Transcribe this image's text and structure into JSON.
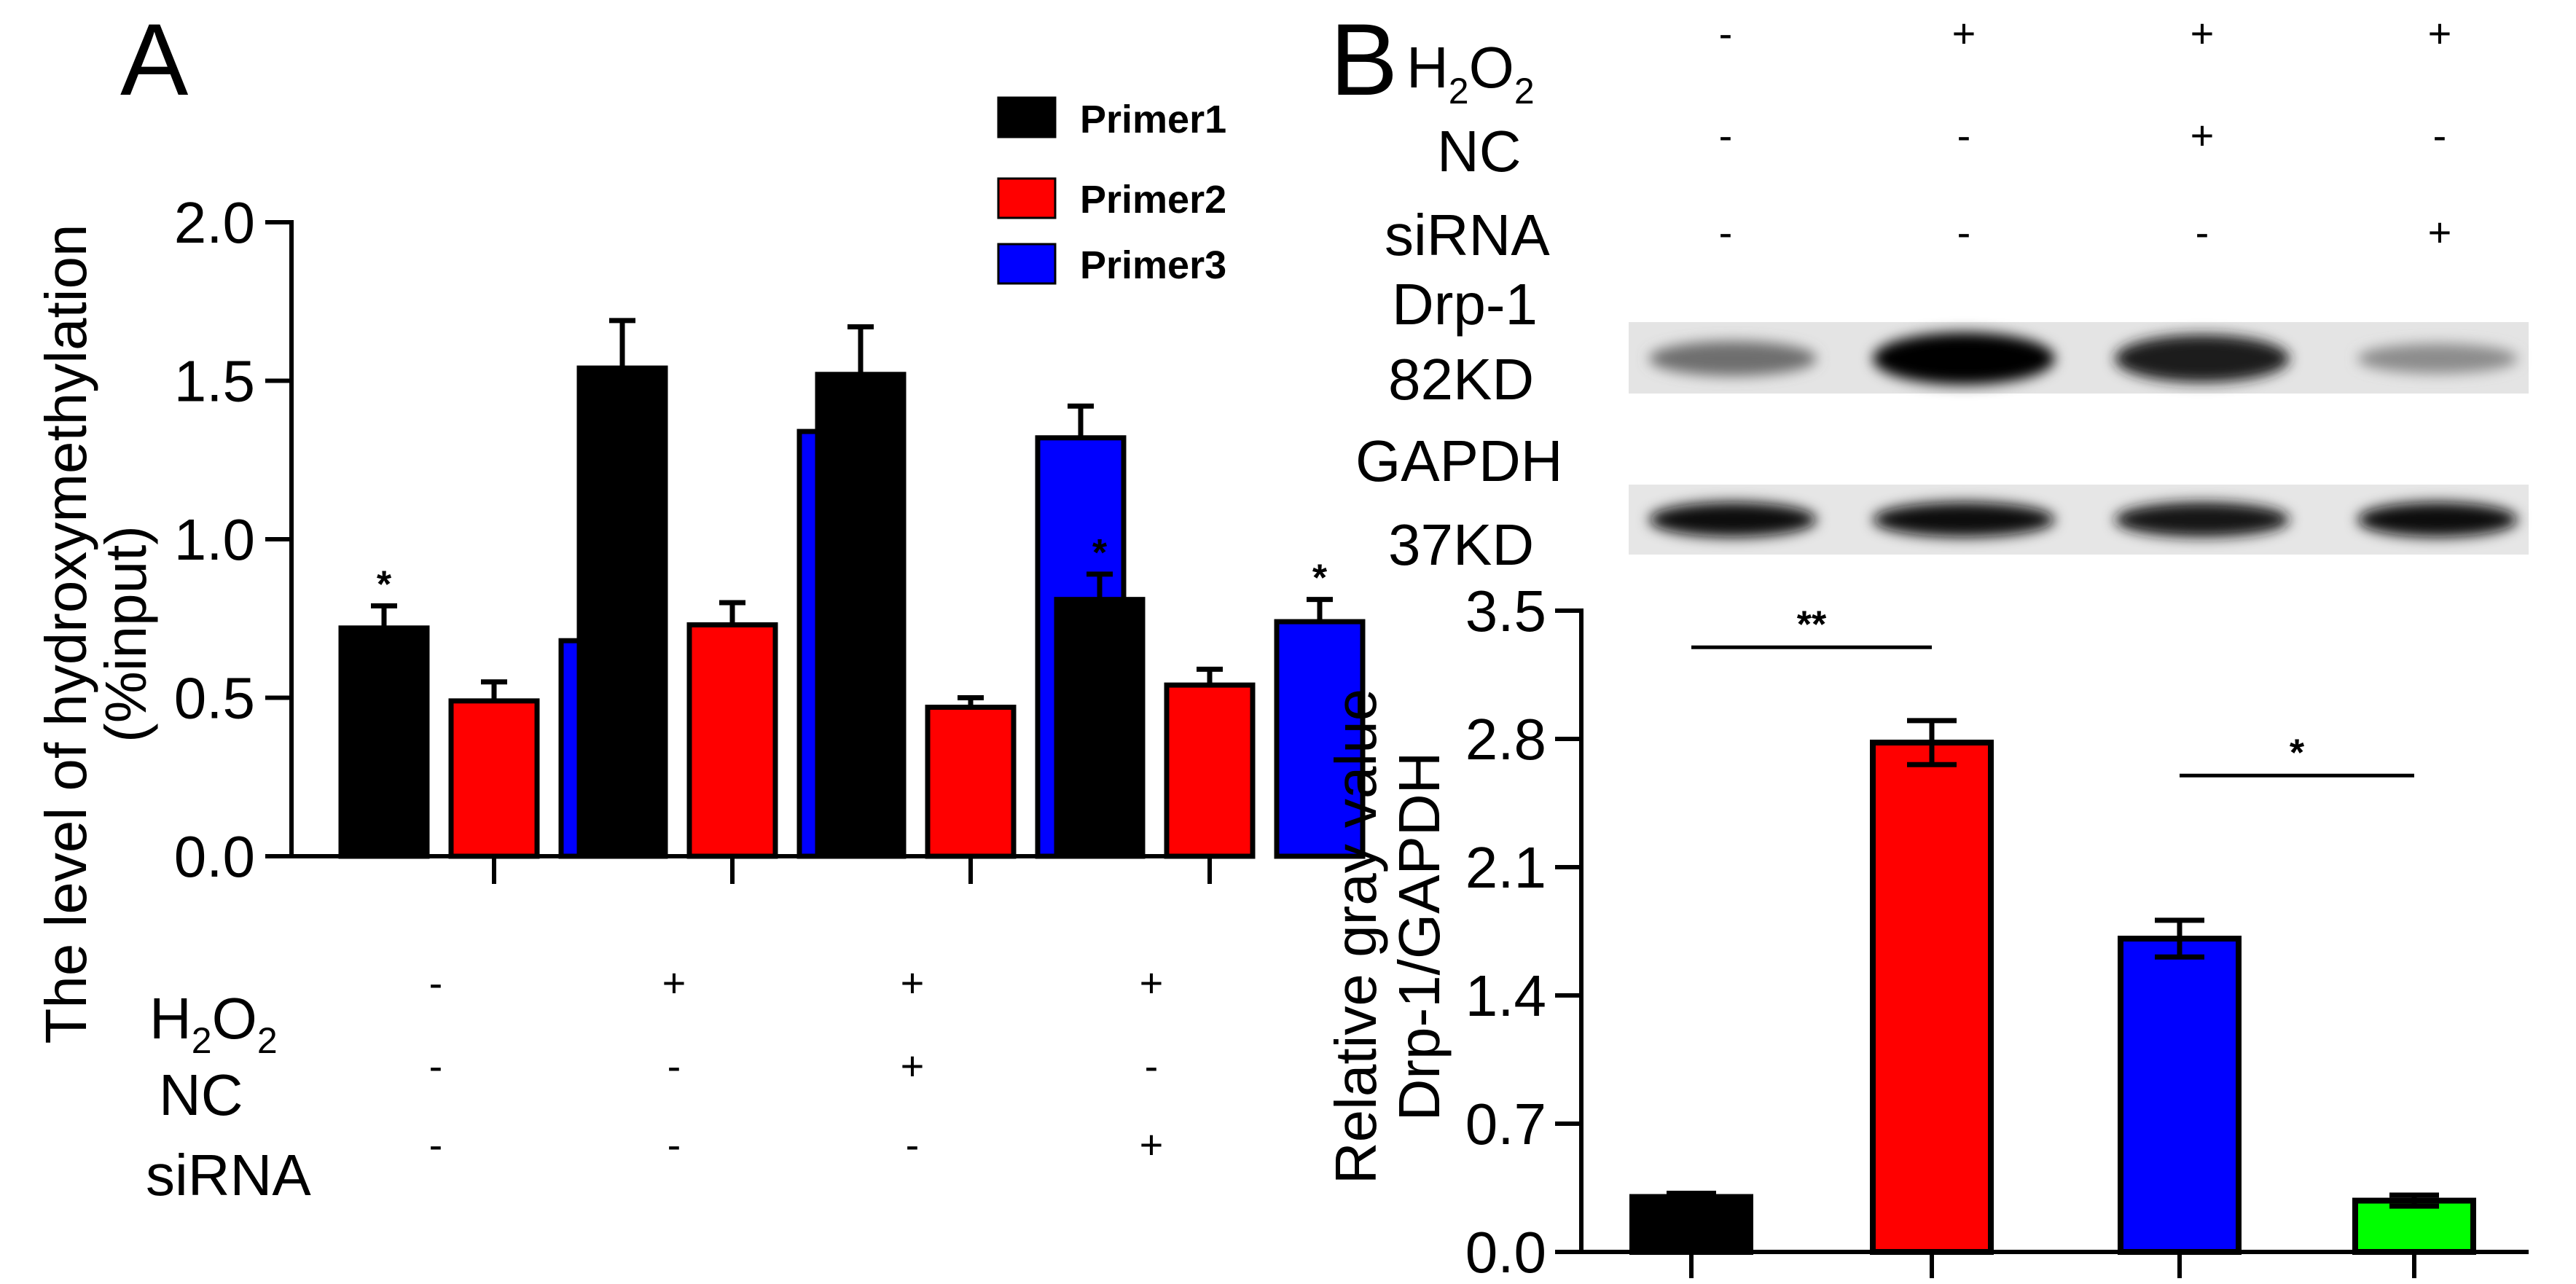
{
  "panel_a": {
    "label": "A",
    "treatments": [
      {
        "name": "H",
        "sub": "2",
        "name2": "O",
        "sub2": "2",
        "values": [
          "-",
          "+",
          "+",
          "+"
        ]
      },
      {
        "name": "NC",
        "values": [
          "-",
          "-",
          "+",
          "-"
        ]
      },
      {
        "name": "siRNA",
        "values": [
          "-",
          "-",
          "-",
          "+"
        ]
      }
    ]
  },
  "panel_b": {
    "label": "B",
    "treatments": [
      {
        "name": "H",
        "sub": "2",
        "name2": "O",
        "sub2": "2",
        "values": [
          "-",
          "+",
          "+",
          "+"
        ]
      },
      {
        "name": "NC",
        "values": [
          "-",
          "-",
          "+",
          "-"
        ]
      },
      {
        "name": "siRNA",
        "values": [
          "-",
          "-",
          "-",
          "+"
        ]
      }
    ],
    "blot_labels": {
      "drp1_name": "Drp-1",
      "drp1_kd": "82KD",
      "gapdh_name": "GAPDH",
      "gapdh_kd": "37KD"
    },
    "blot_intensity": {
      "drp1": [
        0.45,
        1.0,
        0.85,
        0.3
      ],
      "gapdh": [
        0.95,
        0.95,
        0.9,
        0.95
      ]
    }
  },
  "chart_data": [
    {
      "type": "bar",
      "id": "A",
      "ylabel_line1": "The level of hydroxymethylation",
      "ylabel_line2": "(%input)",
      "ylim": [
        0,
        2.0
      ],
      "yticks": [
        "0.0",
        "0.5",
        "1.0",
        "1.5",
        "2.0"
      ],
      "groups": 4,
      "series": [
        {
          "name": "Primer1",
          "color": "#000000",
          "values": [
            0.72,
            1.54,
            1.52,
            0.81
          ],
          "errors": [
            0.07,
            0.15,
            0.15,
            0.08
          ],
          "sig": [
            "*",
            "",
            "",
            "*"
          ]
        },
        {
          "name": "Primer2",
          "color": "#ff0000",
          "values": [
            0.49,
            0.73,
            0.47,
            0.54
          ],
          "errors": [
            0.06,
            0.07,
            0.03,
            0.05
          ],
          "sig": [
            "",
            "",
            "",
            ""
          ]
        },
        {
          "name": "Primer3",
          "color": "#0000ff",
          "values": [
            0.68,
            1.34,
            1.32,
            0.74
          ],
          "errors": [
            0.06,
            0.1,
            0.1,
            0.07
          ],
          "sig": [
            "*",
            "",
            "",
            "*"
          ]
        }
      ],
      "legend_position": "top-right"
    },
    {
      "type": "bar",
      "id": "B",
      "ylabel_line1": "Relative gray value",
      "ylabel_line2": "Drp-1/GAPDH",
      "ylim": [
        0,
        3.5
      ],
      "yticks": [
        "0.0",
        "0.7",
        "1.4",
        "2.1",
        "2.8",
        "3.5"
      ],
      "values": [
        0.3,
        2.78,
        1.71,
        0.28
      ],
      "errors": [
        0.02,
        0.12,
        0.1,
        0.03
      ],
      "colors": [
        "#000000",
        "#ff0000",
        "#0000ff",
        "#00ff00"
      ],
      "significance": [
        {
          "from": 0,
          "to": 1,
          "label": "**",
          "y": 3.3
        },
        {
          "from": 2,
          "to": 3,
          "label": "*",
          "y": 2.6
        }
      ]
    }
  ]
}
